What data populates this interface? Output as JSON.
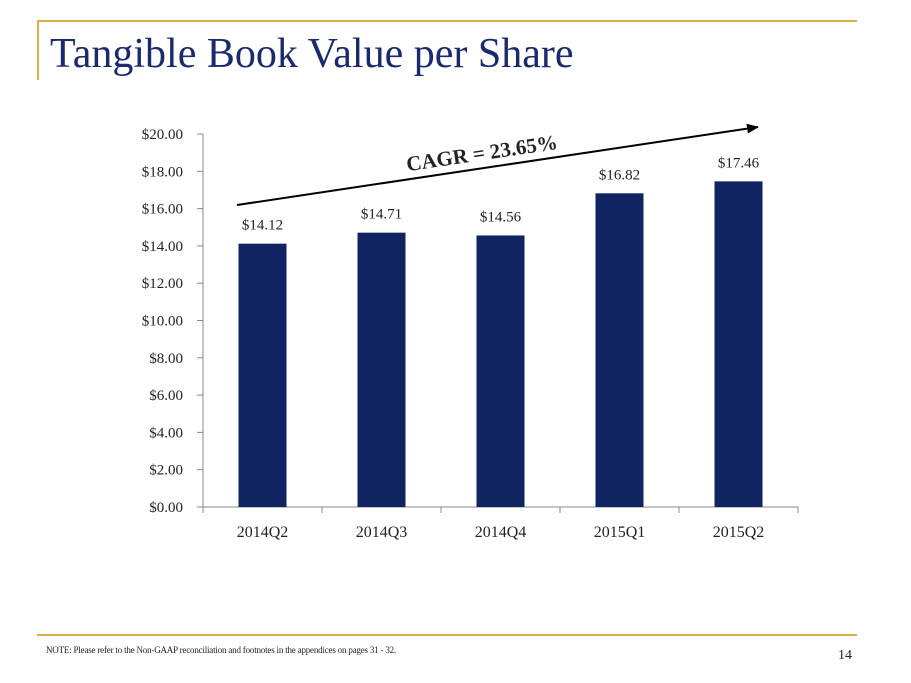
{
  "slide": {
    "title": "Tangible Book Value per Share",
    "note": "NOTE:   Please refer to the Non-GAAP reconciliation and footnotes in the appendices on pages 31 - 32.",
    "page_number": "14"
  },
  "colors": {
    "bar": "#0f2461",
    "title": "#1a2a6c",
    "accent_rule": "#d4b04a"
  },
  "chart_data": {
    "type": "bar",
    "title": "",
    "xlabel": "",
    "ylabel": "",
    "categories": [
      "2014Q2",
      "2014Q3",
      "2014Q4",
      "2015Q1",
      "2015Q2"
    ],
    "values": [
      14.12,
      14.71,
      14.56,
      16.82,
      17.46
    ],
    "value_labels": [
      "$14.12",
      "$14.71",
      "$14.56",
      "$16.82",
      "$17.46"
    ],
    "ylim": [
      0,
      20
    ],
    "yticks": [
      0,
      2,
      4,
      6,
      8,
      10,
      12,
      14,
      16,
      18,
      20
    ],
    "ytick_labels": [
      "$0.00",
      "$2.00",
      "$4.00",
      "$6.00",
      "$8.00",
      "$10.00",
      "$12.00",
      "$14.00",
      "$16.00",
      "$18.00",
      "$20.00"
    ],
    "grid": false,
    "annotation": "CAGR = 23.65%"
  }
}
